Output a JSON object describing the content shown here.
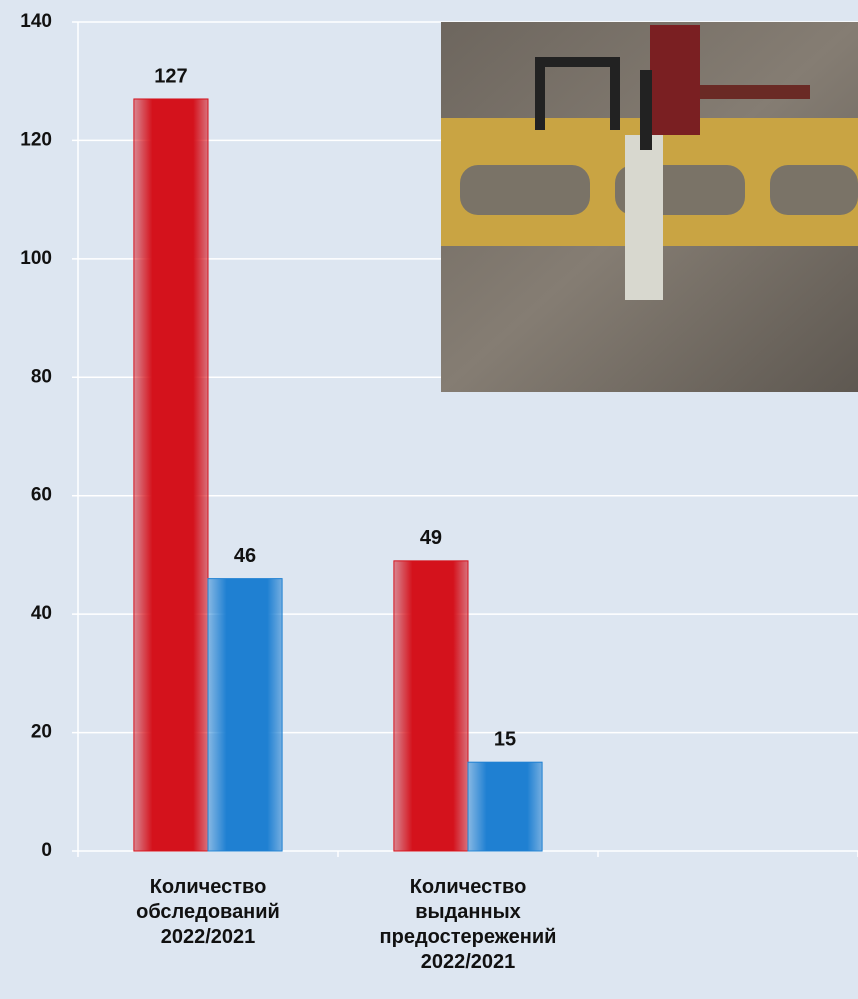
{
  "chart_data": {
    "type": "bar",
    "categories": [
      "Количество\nобследований\n2022/2021",
      "Количество\nвыданных\nпредостережений\n2022/2021",
      null
    ],
    "series": [
      {
        "color": "#d4121c",
        "values": [
          127,
          49,
          null
        ]
      },
      {
        "color": "#1f80d2",
        "values": [
          46,
          15,
          null
        ]
      }
    ],
    "ylim": [
      0,
      140
    ],
    "yticks": [
      0,
      20,
      40,
      60,
      80,
      100,
      120,
      140
    ],
    "grid": true
  }
}
